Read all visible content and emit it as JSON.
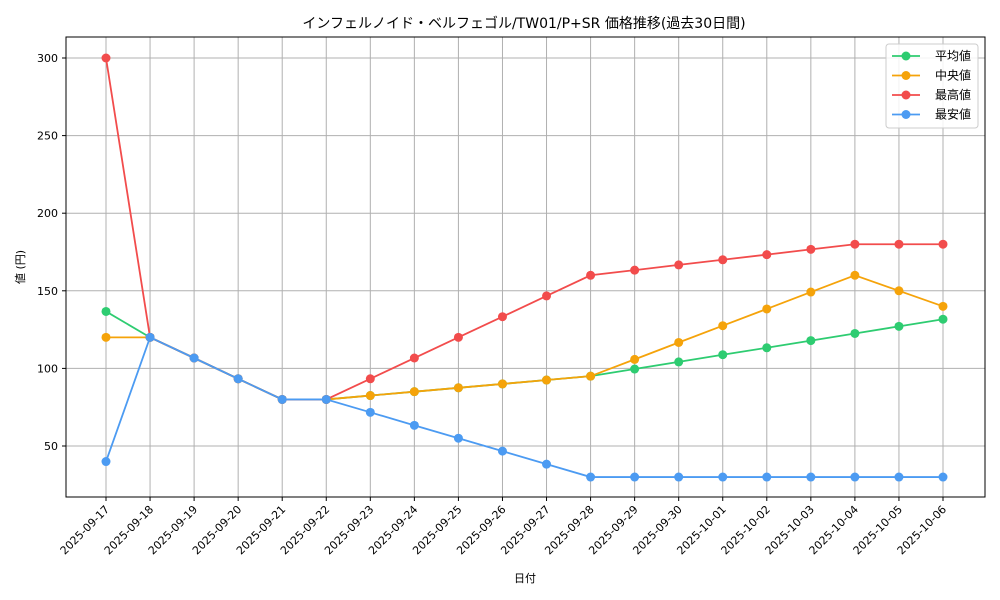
{
  "chart_data": {
    "type": "line",
    "title": "インフェルノイド・ベルフェゴル/TW01/P+SR 価格推移(過去30日間)",
    "xlabel": "日付",
    "ylabel": "値 (円)",
    "ylim": [
      17,
      313
    ],
    "yticks": [
      50,
      100,
      150,
      200,
      250,
      300
    ],
    "grid": true,
    "legend_position": "upper right",
    "categories": [
      "2025-09-17",
      "2025-09-18",
      "2025-09-19",
      "2025-09-20",
      "2025-09-21",
      "2025-09-22",
      "2025-09-23",
      "2025-09-24",
      "2025-09-25",
      "2025-09-26",
      "2025-09-27",
      "2025-09-28",
      "2025-09-29",
      "2025-09-30",
      "2025-10-01",
      "2025-10-02",
      "2025-10-03",
      "2025-10-04",
      "2025-10-05",
      "2025-10-06"
    ],
    "series": [
      {
        "name": "平均値",
        "color": "#2ecc71",
        "values": [
          136.7,
          120,
          106.7,
          93.3,
          80,
          80,
          82.5,
          85,
          87.5,
          90,
          92.5,
          95,
          99.6,
          104.2,
          108.8,
          113.3,
          117.9,
          122.5,
          127.1,
          131.7
        ]
      },
      {
        "name": "中央値",
        "color": "#f5a30a",
        "values": [
          120,
          120,
          106.7,
          93.3,
          80,
          80,
          82.5,
          85,
          87.5,
          90,
          92.5,
          95,
          105.8,
          116.7,
          127.5,
          138.3,
          149.2,
          160,
          150,
          140
        ]
      },
      {
        "name": "最高値",
        "color": "#f24c4c",
        "values": [
          300,
          120,
          106.7,
          93.3,
          80,
          80,
          93.3,
          106.7,
          120,
          133.3,
          146.7,
          160,
          163.3,
          166.7,
          170,
          173.3,
          176.7,
          180,
          180,
          180
        ]
      },
      {
        "name": "最安値",
        "color": "#4c9bf2",
        "values": [
          40,
          120,
          106.7,
          93.3,
          80,
          80,
          71.7,
          63.3,
          55,
          46.7,
          38.3,
          30,
          30,
          30,
          30,
          30,
          30,
          30,
          30,
          30
        ]
      }
    ]
  }
}
